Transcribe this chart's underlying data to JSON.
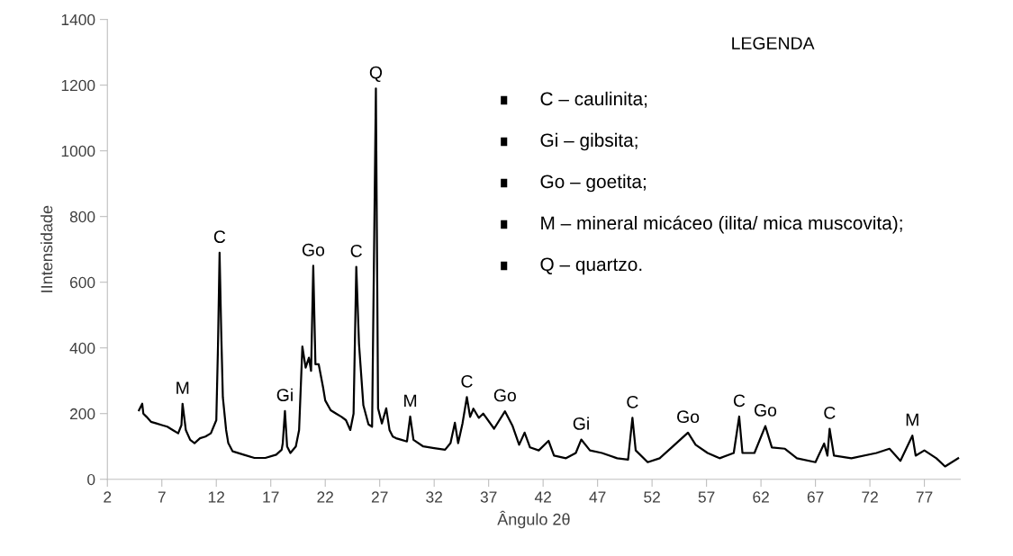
{
  "chart_data": {
    "type": "line",
    "xlabel": "Ângulo 2θ",
    "ylabel": "IIntensidade",
    "x": [
      4.9,
      5.2,
      5.3,
      5.6,
      6.0,
      6.5,
      7.0,
      7.5,
      8.0,
      8.5,
      8.8,
      8.9,
      9.2,
      9.6,
      10.0,
      10.5,
      11.0,
      11.5,
      12.0,
      12.15,
      12.3,
      12.45,
      12.6,
      12.9,
      13.1,
      13.5,
      14.5,
      15.5,
      16.5,
      17.5,
      18.0,
      18.1,
      18.3,
      18.5,
      18.8,
      19.3,
      19.6,
      19.9,
      20.2,
      20.5,
      20.7,
      20.9,
      21.1,
      21.4,
      21.8,
      22.0,
      22.5,
      23.0,
      23.5,
      23.9,
      24.3,
      24.6,
      24.85,
      25.1,
      25.5,
      25.97,
      26.3,
      26.65,
      26.85,
      27.2,
      27.6,
      27.9,
      28.2,
      28.5,
      29.0,
      29.5,
      29.8,
      30.1,
      31.0,
      32.0,
      33.0,
      33.5,
      33.9,
      34.2,
      34.6,
      35.0,
      35.3,
      35.6,
      36.1,
      36.5,
      37.5,
      38.5,
      39.2,
      39.8,
      40.3,
      40.8,
      41.6,
      42.5,
      43.0,
      44.1,
      45.0,
      45.5,
      46.3,
      47.4,
      48.8,
      49.8,
      50.2,
      50.5,
      51.6,
      52.7,
      53.8,
      55.3,
      56.0,
      57.1,
      58.2,
      59.5,
      60.0,
      60.3,
      61.4,
      62.4,
      63.0,
      64.2,
      65.3,
      67.0,
      67.8,
      68.1,
      68.3,
      68.7,
      70.3,
      72.6,
      73.8,
      74.8,
      75.9,
      76.2,
      77.0,
      78.1,
      78.9,
      80.1
    ],
    "values": [
      210,
      230,
      200,
      190,
      175,
      170,
      165,
      160,
      150,
      140,
      165,
      230,
      150,
      120,
      110,
      125,
      130,
      140,
      180,
      400,
      690,
      450,
      250,
      150,
      110,
      85,
      75,
      65,
      65,
      75,
      90,
      110,
      208,
      100,
      80,
      100,
      150,
      404,
      340,
      370,
      330,
      650,
      350,
      350,
      280,
      240,
      210,
      200,
      190,
      180,
      150,
      200,
      647,
      412,
      225,
      167,
      160,
      1190,
      216,
      170,
      216,
      150,
      130,
      125,
      120,
      115,
      191,
      120,
      100,
      95,
      90,
      110,
      172,
      110,
      170,
      250,
      190,
      215,
      187,
      200,
      154,
      207,
      162,
      105,
      142,
      97,
      88,
      117,
      72,
      64,
      80,
      121,
      88,
      80,
      64,
      60,
      187,
      88,
      52,
      64,
      97,
      142,
      105,
      80,
      64,
      80,
      191,
      80,
      80,
      162,
      97,
      93,
      64,
      52,
      109,
      72,
      154,
      72,
      64,
      80,
      93,
      56,
      133,
      72,
      88,
      64,
      39,
      64
    ],
    "color": "#000000",
    "xlim": [
      2,
      80.3
    ],
    "xticks": [
      2,
      7,
      12,
      17,
      22,
      27,
      32,
      37,
      42,
      47,
      52,
      57,
      62,
      67,
      72,
      77
    ],
    "ylim": [
      0,
      1400
    ],
    "yticks": [
      0,
      200,
      400,
      600,
      800,
      1000,
      1200,
      1400
    ],
    "grid": false,
    "legend": false,
    "annotations": [
      {
        "text": "M",
        "x": 8.9,
        "y": 230
      },
      {
        "text": "C",
        "x": 12.3,
        "y": 690
      },
      {
        "text": "Gi",
        "x": 18.3,
        "y": 208
      },
      {
        "text": "Go",
        "x": 20.9,
        "y": 650
      },
      {
        "text": "C",
        "x": 24.85,
        "y": 647
      },
      {
        "text": "Q",
        "x": 26.65,
        "y": 1190
      },
      {
        "text": "M",
        "x": 29.8,
        "y": 191
      },
      {
        "text": "C",
        "x": 35.0,
        "y": 250
      },
      {
        "text": "Go",
        "x": 38.5,
        "y": 207
      },
      {
        "text": "Gi",
        "x": 45.5,
        "y": 121
      },
      {
        "text": "C",
        "x": 50.2,
        "y": 187
      },
      {
        "text": "Go",
        "x": 55.3,
        "y": 142
      },
      {
        "text": "C",
        "x": 60.0,
        "y": 191
      },
      {
        "text": "Go",
        "x": 62.4,
        "y": 162
      },
      {
        "text": "C",
        "x": 68.3,
        "y": 154
      },
      {
        "text": "M",
        "x": 75.9,
        "y": 133
      },
      "LEGENDA",
      "C – caulinita;",
      "Gi – gibsita;",
      "Go – goetita;",
      "M – mineral micáceo (ilita/ mica muscovita);",
      "Q – quartzo."
    ]
  }
}
